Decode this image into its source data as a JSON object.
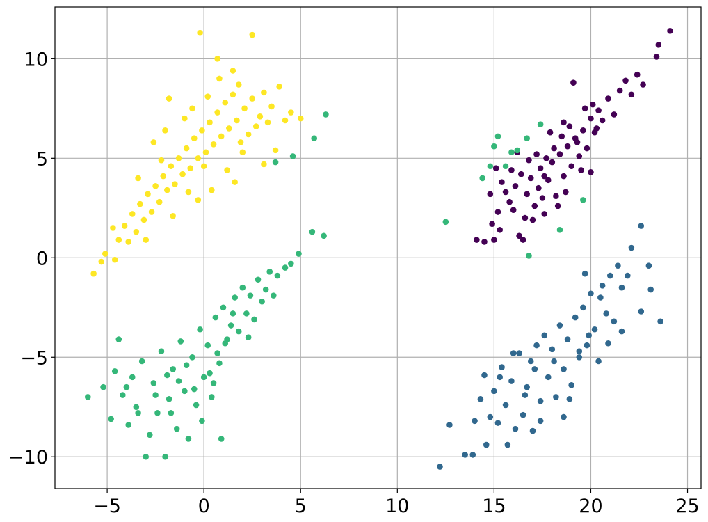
{
  "chart_data": {
    "type": "scatter",
    "title": "",
    "xlabel": "",
    "ylabel": "",
    "xlim": [
      -7.7,
      25.7
    ],
    "ylim": [
      -11.6,
      12.6
    ],
    "grid": true,
    "legend": "none",
    "x_ticks": [
      {
        "value": -5,
        "label": "−5"
      },
      {
        "value": 0,
        "label": "0"
      },
      {
        "value": 5,
        "label": "5"
      },
      {
        "value": 10,
        "label": "10"
      },
      {
        "value": 15,
        "label": "15"
      },
      {
        "value": 20,
        "label": "20"
      },
      {
        "value": 25,
        "label": "25"
      }
    ],
    "y_ticks": [
      {
        "value": -10,
        "label": "−10"
      },
      {
        "value": -5,
        "label": "−5"
      },
      {
        "value": 0,
        "label": "0"
      },
      {
        "value": 5,
        "label": "5"
      },
      {
        "value": 10,
        "label": "10"
      }
    ],
    "series": [
      {
        "color": "#440154",
        "points": [
          [
            14.1,
            0.9
          ],
          [
            14.5,
            0.8
          ],
          [
            14.9,
            1.7
          ],
          [
            15.0,
            0.9
          ],
          [
            15.2,
            2.3
          ],
          [
            15.3,
            1.4
          ],
          [
            15.6,
            3.3
          ],
          [
            15.8,
            2.8
          ],
          [
            16.1,
            3.6
          ],
          [
            16.3,
            1.1
          ],
          [
            16.5,
            0.9
          ],
          [
            16.6,
            2.0
          ],
          [
            16.7,
            3.2
          ],
          [
            16.9,
            4.0
          ],
          [
            17.1,
            2.6
          ],
          [
            17.3,
            3.5
          ],
          [
            17.4,
            4.5
          ],
          [
            17.6,
            2.2
          ],
          [
            17.8,
            3.9
          ],
          [
            18.0,
            4.8
          ],
          [
            18.2,
            3.1
          ],
          [
            18.4,
            5.2
          ],
          [
            18.6,
            4.1
          ],
          [
            18.8,
            5.6
          ],
          [
            19.0,
            4.6
          ],
          [
            19.2,
            6.0
          ],
          [
            19.4,
            5.1
          ],
          [
            19.6,
            6.4
          ],
          [
            19.8,
            5.5
          ],
          [
            20.0,
            7.0
          ],
          [
            20.2,
            6.3
          ],
          [
            20.4,
            7.4
          ],
          [
            20.6,
            6.9
          ],
          [
            20.9,
            8.0
          ],
          [
            21.2,
            7.2
          ],
          [
            21.5,
            8.4
          ],
          [
            21.8,
            8.9
          ],
          [
            22.1,
            8.2
          ],
          [
            22.4,
            9.2
          ],
          [
            22.7,
            8.7
          ],
          [
            23.4,
            10.1
          ],
          [
            23.5,
            10.7
          ],
          [
            24.1,
            11.4
          ],
          [
            15.4,
            3.8
          ],
          [
            15.9,
            4.4
          ],
          [
            16.4,
            4.2
          ],
          [
            16.8,
            4.9
          ],
          [
            17.2,
            5.2
          ],
          [
            17.7,
            5.0
          ],
          [
            18.1,
            5.5
          ],
          [
            18.5,
            6.1
          ],
          [
            18.9,
            6.6
          ],
          [
            19.3,
            5.8
          ],
          [
            19.7,
            7.5
          ],
          [
            20.1,
            7.7
          ],
          [
            17.0,
            1.9
          ],
          [
            17.5,
            3.0
          ],
          [
            18.3,
            2.6
          ],
          [
            18.7,
            3.3
          ],
          [
            19.5,
            4.4
          ],
          [
            20.0,
            4.3
          ],
          [
            19.1,
            8.8
          ],
          [
            17.9,
            6.3
          ],
          [
            16.2,
            5.3
          ],
          [
            15.1,
            4.5
          ],
          [
            14.8,
            3.2
          ],
          [
            16.0,
            2.4
          ],
          [
            17.6,
            4.1
          ],
          [
            18.6,
            6.8
          ],
          [
            20.3,
            6.5
          ]
        ]
      },
      {
        "color": "#31688e",
        "points": [
          [
            12.2,
            -10.5
          ],
          [
            12.7,
            -8.4
          ],
          [
            13.5,
            -9.9
          ],
          [
            13.9,
            -9.9
          ],
          [
            14.0,
            -8.2
          ],
          [
            14.3,
            -7.1
          ],
          [
            14.5,
            -5.9
          ],
          [
            14.6,
            -9.4
          ],
          [
            14.8,
            -8.0
          ],
          [
            15.0,
            -6.7
          ],
          [
            15.2,
            -8.3
          ],
          [
            15.4,
            -5.5
          ],
          [
            15.6,
            -7.4
          ],
          [
            15.7,
            -9.4
          ],
          [
            15.9,
            -6.2
          ],
          [
            16.1,
            -8.6
          ],
          [
            16.3,
            -4.8
          ],
          [
            16.5,
            -7.9
          ],
          [
            16.7,
            -6.5
          ],
          [
            16.9,
            -5.2
          ],
          [
            17.0,
            -8.7
          ],
          [
            17.2,
            -4.4
          ],
          [
            17.4,
            -7.2
          ],
          [
            17.6,
            -3.9
          ],
          [
            17.8,
            -6.0
          ],
          [
            18.0,
            -4.6
          ],
          [
            18.2,
            -7.0
          ],
          [
            18.4,
            -3.4
          ],
          [
            18.6,
            -5.6
          ],
          [
            18.8,
            -4.1
          ],
          [
            19.0,
            -6.4
          ],
          [
            19.2,
            -3.0
          ],
          [
            19.4,
            -5.0
          ],
          [
            19.6,
            -2.5
          ],
          [
            19.8,
            -4.4
          ],
          [
            20.0,
            -1.8
          ],
          [
            20.2,
            -3.6
          ],
          [
            20.4,
            -5.2
          ],
          [
            20.6,
            -1.4
          ],
          [
            20.8,
            -2.8
          ],
          [
            21.0,
            -0.9
          ],
          [
            21.2,
            -3.2
          ],
          [
            21.4,
            -0.4
          ],
          [
            21.6,
            -1.5
          ],
          [
            21.9,
            -0.9
          ],
          [
            22.1,
            0.5
          ],
          [
            22.6,
            1.6
          ],
          [
            23.0,
            -0.4
          ],
          [
            23.1,
            -1.6
          ],
          [
            23.6,
            -3.2
          ],
          [
            21.6,
            -3.7
          ],
          [
            22.6,
            -2.7
          ],
          [
            19.7,
            -0.8
          ],
          [
            17.4,
            -8.2
          ],
          [
            16.6,
            -6.9
          ],
          [
            18.9,
            -7.1
          ],
          [
            19.4,
            -4.7
          ],
          [
            20.9,
            -4.3
          ],
          [
            15.3,
            -6.0
          ],
          [
            17.1,
            -5.6
          ],
          [
            18.1,
            -5.2
          ],
          [
            19.9,
            -3.9
          ],
          [
            16.0,
            -4.8
          ],
          [
            18.6,
            -8.0
          ],
          [
            20.5,
            -2.0
          ]
        ]
      },
      {
        "color": "#35b779",
        "points": [
          [
            -6.0,
            -7.0
          ],
          [
            -5.2,
            -6.5
          ],
          [
            -4.8,
            -8.1
          ],
          [
            -4.6,
            -5.7
          ],
          [
            -4.4,
            -4.1
          ],
          [
            -4.2,
            -6.9
          ],
          [
            -3.9,
            -8.4
          ],
          [
            -3.7,
            -6.0
          ],
          [
            -3.5,
            -7.5
          ],
          [
            -3.2,
            -5.2
          ],
          [
            -3.0,
            -10.0
          ],
          [
            -2.8,
            -8.9
          ],
          [
            -2.6,
            -6.3
          ],
          [
            -2.4,
            -7.8
          ],
          [
            -2.2,
            -4.7
          ],
          [
            -2.0,
            -10.0
          ],
          [
            -1.8,
            -7.1
          ],
          [
            -1.6,
            -5.6
          ],
          [
            -1.4,
            -8.6
          ],
          [
            -1.2,
            -4.2
          ],
          [
            -1.0,
            -6.7
          ],
          [
            -0.8,
            -9.1
          ],
          [
            -0.6,
            -5.0
          ],
          [
            -0.4,
            -7.4
          ],
          [
            -0.2,
            -3.6
          ],
          [
            0.0,
            -6.0
          ],
          [
            0.2,
            -4.4
          ],
          [
            0.4,
            -7.0
          ],
          [
            0.6,
            -3.0
          ],
          [
            0.8,
            -5.3
          ],
          [
            1.0,
            -2.5
          ],
          [
            1.2,
            -4.1
          ],
          [
            1.4,
            -3.4
          ],
          [
            1.6,
            -2.0
          ],
          [
            1.8,
            -3.7
          ],
          [
            2.0,
            -1.5
          ],
          [
            2.2,
            -2.8
          ],
          [
            2.4,
            -1.9
          ],
          [
            2.6,
            -3.1
          ],
          [
            2.8,
            -1.1
          ],
          [
            3.0,
            -2.2
          ],
          [
            3.2,
            -1.6
          ],
          [
            3.4,
            -0.7
          ],
          [
            3.6,
            -1.9
          ],
          [
            3.8,
            -0.9
          ],
          [
            4.2,
            -0.5
          ],
          [
            4.5,
            -0.3
          ],
          [
            4.9,
            0.2
          ],
          [
            5.6,
            1.3
          ],
          [
            6.2,
            1.1
          ],
          [
            6.3,
            7.2
          ],
          [
            5.7,
            6.0
          ],
          [
            4.6,
            5.1
          ],
          [
            3.7,
            4.8
          ],
          [
            -1.3,
            -6.2
          ],
          [
            -0.9,
            -5.4
          ],
          [
            -0.5,
            -6.6
          ],
          [
            0.3,
            -5.8
          ],
          [
            0.7,
            -4.8
          ],
          [
            1.1,
            -4.3
          ],
          [
            -2.5,
            -6.9
          ],
          [
            -1.9,
            -5.9
          ],
          [
            -3.4,
            -7.8
          ],
          [
            -4.0,
            -6.5
          ],
          [
            0.9,
            -9.1
          ],
          [
            -0.1,
            -8.2
          ],
          [
            2.3,
            -4.0
          ],
          [
            1.5,
            -2.8
          ],
          [
            -1.7,
            -7.8
          ],
          [
            0.5,
            -6.3
          ],
          [
            14.4,
            4.0
          ],
          [
            14.8,
            4.6
          ],
          [
            15.2,
            6.1
          ],
          [
            15.6,
            4.6
          ],
          [
            15.9,
            5.3
          ],
          [
            16.2,
            5.4
          ],
          [
            16.7,
            6.0
          ],
          [
            16.8,
            0.1
          ],
          [
            17.4,
            6.7
          ],
          [
            18.4,
            1.4
          ],
          [
            19.6,
            2.9
          ],
          [
            12.5,
            1.8
          ],
          [
            15.0,
            5.6
          ]
        ]
      },
      {
        "color": "#fde725",
        "points": [
          [
            -5.7,
            -0.8
          ],
          [
            -5.3,
            -0.2
          ],
          [
            -5.1,
            0.2
          ],
          [
            -4.6,
            -0.1
          ],
          [
            -4.4,
            0.9
          ],
          [
            -4.1,
            1.6
          ],
          [
            -3.9,
            0.8
          ],
          [
            -3.7,
            2.2
          ],
          [
            -3.5,
            1.3
          ],
          [
            -3.3,
            2.7
          ],
          [
            -3.1,
            1.9
          ],
          [
            -2.9,
            3.2
          ],
          [
            -2.7,
            2.3
          ],
          [
            -2.5,
            3.6
          ],
          [
            -2.3,
            2.8
          ],
          [
            -2.1,
            4.1
          ],
          [
            -1.9,
            3.4
          ],
          [
            -1.7,
            4.6
          ],
          [
            -1.5,
            3.7
          ],
          [
            -1.3,
            5.0
          ],
          [
            -1.1,
            4.2
          ],
          [
            -0.9,
            5.5
          ],
          [
            -0.7,
            4.5
          ],
          [
            -0.5,
            6.0
          ],
          [
            -0.3,
            5.0
          ],
          [
            -0.1,
            6.4
          ],
          [
            0.1,
            5.3
          ],
          [
            0.3,
            6.8
          ],
          [
            0.5,
            5.7
          ],
          [
            0.7,
            7.3
          ],
          [
            0.9,
            6.1
          ],
          [
            1.1,
            7.8
          ],
          [
            1.3,
            6.5
          ],
          [
            1.5,
            8.2
          ],
          [
            1.7,
            6.9
          ],
          [
            1.9,
            5.8
          ],
          [
            2.1,
            7.5
          ],
          [
            2.3,
            6.2
          ],
          [
            2.5,
            8.0
          ],
          [
            2.7,
            6.6
          ],
          [
            2.9,
            7.1
          ],
          [
            3.1,
            8.3
          ],
          [
            3.3,
            6.8
          ],
          [
            3.5,
            7.6
          ],
          [
            3.7,
            5.4
          ],
          [
            3.9,
            8.6
          ],
          [
            4.2,
            6.9
          ],
          [
            4.5,
            7.3
          ],
          [
            5.0,
            7.0
          ],
          [
            -0.2,
            11.3
          ],
          [
            0.7,
            10.0
          ],
          [
            1.5,
            9.4
          ],
          [
            2.5,
            11.2
          ],
          [
            0.8,
            9.0
          ],
          [
            1.8,
            8.7
          ],
          [
            -1.8,
            8.0
          ],
          [
            -0.6,
            7.5
          ],
          [
            -2.6,
            5.8
          ],
          [
            -3.4,
            4.0
          ],
          [
            -1.6,
            2.1
          ],
          [
            -0.3,
            2.9
          ],
          [
            0.4,
            3.4
          ],
          [
            1.2,
            4.4
          ],
          [
            2.0,
            5.3
          ],
          [
            -2.0,
            6.4
          ],
          [
            -1.0,
            7.0
          ],
          [
            0.0,
            4.6
          ],
          [
            -4.7,
            1.5
          ],
          [
            -3.0,
            0.9
          ],
          [
            1.6,
            3.8
          ],
          [
            3.1,
            4.7
          ],
          [
            0.2,
            8.1
          ],
          [
            -0.8,
            3.3
          ],
          [
            -2.2,
            4.9
          ]
        ]
      }
    ]
  }
}
